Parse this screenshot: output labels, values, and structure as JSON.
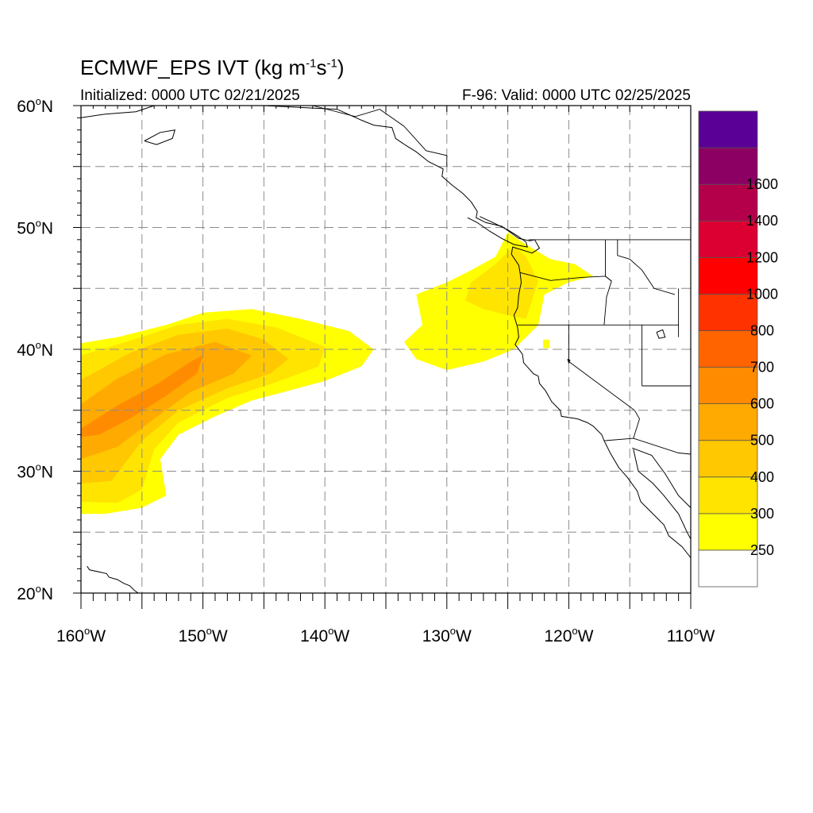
{
  "title": {
    "model": "ECMWF_EPS",
    "var": "IVT",
    "units": "kg m",
    "u_exp1": "-1",
    "u_mid": "s",
    "u_exp2": "-1"
  },
  "subtitle_left": "Initialized: 0000 UTC 02/21/2025",
  "subtitle_right": "F-96: Valid: 0000 UTC 02/25/2025",
  "map_extent": {
    "lon": [
      -160,
      -110
    ],
    "lat": [
      20,
      60
    ]
  },
  "lat_ticks": [
    {
      "value": 60,
      "num": "60",
      "hemi": "N"
    },
    {
      "value": 50,
      "num": "50",
      "hemi": "N"
    },
    {
      "value": 40,
      "num": "40",
      "hemi": "N"
    },
    {
      "value": 30,
      "num": "30",
      "hemi": "N"
    },
    {
      "value": 20,
      "num": "20",
      "hemi": "N"
    }
  ],
  "lon_ticks": [
    {
      "value": -160,
      "num": "160",
      "hemi": "W"
    },
    {
      "value": -150,
      "num": "150",
      "hemi": "W"
    },
    {
      "value": -140,
      "num": "140",
      "hemi": "W"
    },
    {
      "value": -130,
      "num": "130",
      "hemi": "W"
    },
    {
      "value": -120,
      "num": "120",
      "hemi": "W"
    },
    {
      "value": -110,
      "num": "110",
      "hemi": "W"
    }
  ],
  "grid": {
    "lat_step": 5,
    "lon_step": 5,
    "style": "dashed",
    "color": "#8c8c8c"
  },
  "colorbar": {
    "levels": [
      "250",
      "300",
      "400",
      "500",
      "600",
      "700",
      "800",
      "1000",
      "1200",
      "1400",
      "1600"
    ],
    "colors": [
      "#ffffff",
      "#ffff00",
      "#ffe400",
      "#ffc800",
      "#ffaa00",
      "#ff8c00",
      "#ff6400",
      "#ff3200",
      "#ff0000",
      "#dc0032",
      "#b4004b",
      "#8c0064",
      "#5a0096"
    ]
  },
  "ivt_regions": [
    {
      "name": "pacific-plume-300",
      "level": 300,
      "color": "#ffff00",
      "polygon": [
        [
          -160,
          40.5
        ],
        [
          -157,
          41
        ],
        [
          -153,
          42
        ],
        [
          -150,
          43
        ],
        [
          -146,
          43.3
        ],
        [
          -142,
          42.5
        ],
        [
          -138,
          41.5
        ],
        [
          -136,
          40
        ],
        [
          -137,
          38.6
        ],
        [
          -140,
          37.4
        ],
        [
          -143,
          36.6
        ],
        [
          -146,
          35.8
        ],
        [
          -149,
          34.5
        ],
        [
          -152,
          33
        ],
        [
          -153.5,
          31
        ],
        [
          -153,
          28
        ],
        [
          -155,
          27
        ],
        [
          -158,
          26.5
        ],
        [
          -160,
          26.5
        ]
      ]
    },
    {
      "name": "pacific-plume-400",
      "level": 400,
      "color": "#ffe400",
      "polygon": [
        [
          -160,
          39.5
        ],
        [
          -156,
          40.7
        ],
        [
          -152,
          42
        ],
        [
          -148,
          42.5
        ],
        [
          -144,
          41.8
        ],
        [
          -140,
          40.2
        ],
        [
          -140.5,
          38.6
        ],
        [
          -144,
          37.3
        ],
        [
          -148,
          36
        ],
        [
          -152,
          34
        ],
        [
          -154,
          31.8
        ],
        [
          -155,
          28.5
        ],
        [
          -157,
          27.4
        ],
        [
          -160,
          27.5
        ]
      ]
    },
    {
      "name": "pacific-plume-500",
      "level": 500,
      "color": "#ffc800",
      "polygon": [
        [
          -160,
          37.5
        ],
        [
          -156,
          39.7
        ],
        [
          -152,
          41.2
        ],
        [
          -148,
          41.7
        ],
        [
          -145,
          40.8
        ],
        [
          -143,
          39.2
        ],
        [
          -144.5,
          38
        ],
        [
          -148,
          36.8
        ],
        [
          -152,
          35
        ],
        [
          -155,
          32.5
        ],
        [
          -157.5,
          29.2
        ],
        [
          -160,
          29
        ]
      ]
    },
    {
      "name": "pacific-plume-600",
      "level": 600,
      "color": "#ffaa00",
      "polygon": [
        [
          -160,
          35.5
        ],
        [
          -157,
          37.6
        ],
        [
          -153,
          39.6
        ],
        [
          -149,
          40.6
        ],
        [
          -146,
          39.5
        ],
        [
          -147.5,
          38
        ],
        [
          -151,
          36.5
        ],
        [
          -154,
          34.3
        ],
        [
          -157,
          32
        ],
        [
          -160,
          31
        ]
      ]
    },
    {
      "name": "pacific-plume-700",
      "level": 700,
      "color": "#ff8c00",
      "polygon": [
        [
          -160,
          33.5
        ],
        [
          -157,
          35.4
        ],
        [
          -153.5,
          37.3
        ],
        [
          -151,
          39
        ],
        [
          -150,
          39.5
        ],
        [
          -150.5,
          38
        ],
        [
          -153,
          36.2
        ],
        [
          -156,
          34.3
        ],
        [
          -158.5,
          33
        ],
        [
          -160,
          32.8
        ]
      ]
    },
    {
      "name": "coastal-plume-300",
      "level": 300,
      "color": "#ffff00",
      "polygon": [
        [
          -133.5,
          40.6
        ],
        [
          -132,
          42
        ],
        [
          -132.5,
          44.5
        ],
        [
          -130,
          45.5
        ],
        [
          -128,
          46.5
        ],
        [
          -126,
          47.6
        ],
        [
          -125,
          49.6
        ],
        [
          -123.5,
          48.6
        ],
        [
          -121.5,
          47.4
        ],
        [
          -119.5,
          47
        ],
        [
          -118,
          46
        ],
        [
          -120,
          45.5
        ],
        [
          -122,
          44.5
        ],
        [
          -122.5,
          42
        ],
        [
          -124.5,
          40
        ],
        [
          -127,
          39
        ],
        [
          -130,
          38.3
        ],
        [
          -132.5,
          39.2
        ]
      ]
    },
    {
      "name": "coastal-plume-400",
      "level": 400,
      "color": "#ffe400",
      "polygon": [
        [
          -128,
          45.5
        ],
        [
          -126,
          47
        ],
        [
          -124.5,
          48.5
        ],
        [
          -123.5,
          47.6
        ],
        [
          -122.5,
          45.6
        ],
        [
          -123.5,
          42.5
        ],
        [
          -125,
          42.8
        ],
        [
          -127,
          43.3
        ],
        [
          -128.5,
          44
        ]
      ]
    },
    {
      "name": "interior-blob-300",
      "level": 300,
      "color": "#ffff00",
      "polygon": [
        [
          -122.1,
          40.8
        ],
        [
          -121.6,
          40.8
        ],
        [
          -121.6,
          40.1
        ],
        [
          -122.1,
          40.1
        ]
      ]
    }
  ],
  "border_lines": [
    {
      "name": "canada-us-border",
      "points": [
        [
          -123.3,
          49
        ],
        [
          -110,
          49
        ]
      ]
    },
    {
      "name": "washington-oregon-border",
      "points": [
        [
          -124,
          46.3
        ],
        [
          -121.5,
          45.65
        ],
        [
          -119,
          45.9
        ],
        [
          -117,
          46
        ],
        [
          -116.5,
          45.6
        ]
      ]
    },
    {
      "name": "idaho-west-border",
      "points": [
        [
          -117,
          49
        ],
        [
          -117,
          46
        ],
        [
          -116.5,
          45.6
        ],
        [
          -116.9,
          44.3
        ],
        [
          -117.1,
          42
        ]
      ]
    },
    {
      "name": "idaho-montana-border",
      "points": [
        [
          -116,
          49
        ],
        [
          -116,
          47.7
        ],
        [
          -115,
          47.4
        ],
        [
          -114,
          46.5
        ],
        [
          -113,
          45
        ],
        [
          -111.3,
          44.5
        ]
      ]
    },
    {
      "name": "oregon-california-nevada-border",
      "points": [
        [
          -124.2,
          42
        ],
        [
          -111,
          42
        ]
      ]
    },
    {
      "name": "nevada-utah-border",
      "points": [
        [
          -114,
          42
        ],
        [
          -114,
          37
        ]
      ]
    },
    {
      "name": "california-nevada-border",
      "points": [
        [
          -120,
          42
        ],
        [
          -120,
          39
        ],
        [
          -114.6,
          35
        ]
      ]
    },
    {
      "name": "california-arizona-border",
      "points": [
        [
          -114.6,
          35
        ],
        [
          -114.2,
          34.3
        ],
        [
          -114.7,
          32.7
        ]
      ]
    },
    {
      "name": "us-mexico-border",
      "points": [
        [
          -117.1,
          32.5
        ],
        [
          -114.7,
          32.7
        ],
        [
          -111,
          31.5
        ],
        [
          -110,
          31.4
        ]
      ]
    },
    {
      "name": "utah-arizona-border",
      "points": [
        [
          -114,
          37
        ],
        [
          -110,
          37
        ]
      ]
    },
    {
      "name": "wyoming-idaho-border",
      "points": [
        [
          -111,
          45
        ],
        [
          -111,
          41
        ]
      ]
    },
    {
      "name": "alaska-canada-border",
      "points": [
        [
          -141,
          60
        ],
        [
          -137.5,
          59.1
        ],
        [
          -135.5,
          59.7
        ],
        [
          -133.5,
          58.3
        ],
        [
          -131.7,
          56.3
        ],
        [
          -130,
          55.9
        ],
        [
          -130,
          55
        ]
      ]
    }
  ],
  "coast_lines": [
    {
      "name": "north-america-coast",
      "points": [
        [
          -145,
          60
        ],
        [
          -141,
          59.8
        ],
        [
          -139,
          59.7
        ],
        [
          -137,
          58.8
        ],
        [
          -136,
          58.4
        ],
        [
          -134.5,
          58.2
        ],
        [
          -134.2,
          57.3
        ],
        [
          -133.3,
          56.7
        ],
        [
          -132.5,
          56.2
        ],
        [
          -131.5,
          55.4
        ],
        [
          -130.3,
          54.8
        ],
        [
          -130.4,
          54.2
        ],
        [
          -129.6,
          53.5
        ],
        [
          -128.7,
          52.8
        ],
        [
          -128,
          52.1
        ],
        [
          -127.5,
          51.3
        ],
        [
          -127.6,
          50.8
        ],
        [
          -126.8,
          50.4
        ],
        [
          -125.5,
          50.1
        ],
        [
          -124.8,
          49.6
        ],
        [
          -124.1,
          49.1
        ],
        [
          -123.2,
          48.9
        ],
        [
          -122.8,
          49
        ],
        [
          -122.4,
          48.3
        ],
        [
          -123,
          47.9
        ],
        [
          -124.6,
          48.4
        ],
        [
          -124.7,
          47.8
        ],
        [
          -124.1,
          46.9
        ],
        [
          -124,
          46.3
        ],
        [
          -123.9,
          45.5
        ],
        [
          -124.1,
          44.5
        ],
        [
          -124.2,
          43.4
        ],
        [
          -124.5,
          42.8
        ],
        [
          -124.2,
          41.8
        ],
        [
          -124.1,
          41
        ],
        [
          -124.4,
          40.4
        ],
        [
          -123.8,
          39.6
        ],
        [
          -123.7,
          38.9
        ],
        [
          -122.9,
          38
        ],
        [
          -122.5,
          37.8
        ],
        [
          -122.4,
          37.2
        ],
        [
          -121.9,
          36.6
        ],
        [
          -121.4,
          35.7
        ],
        [
          -120.7,
          35
        ],
        [
          -120.6,
          34.5
        ],
        [
          -119.3,
          34.3
        ],
        [
          -118.5,
          34
        ],
        [
          -118,
          33.7
        ],
        [
          -117.3,
          33
        ],
        [
          -117.1,
          32.5
        ],
        [
          -116.6,
          31.5
        ],
        [
          -115.9,
          30.3
        ],
        [
          -115.2,
          29.5
        ],
        [
          -114.4,
          28.4
        ],
        [
          -114.1,
          27.5
        ],
        [
          -113.4,
          26.8
        ],
        [
          -112.2,
          25.6
        ],
        [
          -111.8,
          24.7
        ],
        [
          -110.7,
          23.8
        ],
        [
          -110,
          22.9
        ]
      ]
    },
    {
      "name": "vancouver-island-coast",
      "points": [
        [
          -128.3,
          50.8
        ],
        [
          -127.5,
          50.4
        ],
        [
          -126.5,
          49.7
        ],
        [
          -125.5,
          49.1
        ],
        [
          -124.5,
          48.6
        ],
        [
          -123.4,
          48.4
        ],
        [
          -123.5,
          48.8
        ],
        [
          -124.2,
          49.3
        ],
        [
          -125,
          49.8
        ],
        [
          -126,
          50.3
        ],
        [
          -127.3,
          50.9
        ]
      ]
    },
    {
      "name": "gulf-of-california-coast",
      "points": [
        [
          -114.7,
          31.8
        ],
        [
          -114.3,
          30
        ],
        [
          -113.1,
          29
        ],
        [
          -112.2,
          28
        ],
        [
          -111,
          26.5
        ],
        [
          -110.3,
          25
        ],
        [
          -109.5,
          23.5
        ]
      ]
    },
    {
      "name": "mainland-mexico-coast",
      "points": [
        [
          -114.8,
          31.9
        ],
        [
          -113.2,
          31.3
        ],
        [
          -112.1,
          29.8
        ],
        [
          -111,
          28
        ],
        [
          -110,
          27
        ],
        [
          -110,
          26
        ]
      ]
    },
    {
      "name": "alaska-coast",
      "points": [
        [
          -160,
          59
        ],
        [
          -158,
          59.3
        ],
        [
          -155.5,
          59.5
        ],
        [
          -154,
          60
        ]
      ]
    },
    {
      "name": "kodiak-coast",
      "points": [
        [
          -154.8,
          57.1
        ],
        [
          -153.5,
          57.8
        ],
        [
          -152.3,
          58
        ],
        [
          -152.5,
          57.3
        ],
        [
          -153.8,
          56.8
        ],
        [
          -154.8,
          57.1
        ]
      ]
    },
    {
      "name": "sierra-lake-coast",
      "points": [
        [
          -120.1,
          39.2
        ],
        [
          -119.9,
          39.1
        ],
        [
          -120,
          38.9
        ],
        [
          -120.1,
          39.2
        ]
      ]
    },
    {
      "name": "great-salt-lake-coast",
      "points": [
        [
          -112.8,
          41.4
        ],
        [
          -112.3,
          41.6
        ],
        [
          -112.1,
          41
        ],
        [
          -112.6,
          40.9
        ],
        [
          -112.8,
          41.4
        ]
      ]
    },
    {
      "name": "hawaii-coast",
      "points": [
        [
          -159.5,
          22.2
        ],
        [
          -159.3,
          21.9
        ],
        [
          -157.9,
          21.6
        ],
        [
          -157.7,
          21.3
        ],
        [
          -157,
          21.1
        ],
        [
          -156.5,
          20.8
        ],
        [
          -156,
          20.6
        ],
        [
          -155.6,
          20.2
        ],
        [
          -155,
          19.8
        ]
      ]
    }
  ]
}
